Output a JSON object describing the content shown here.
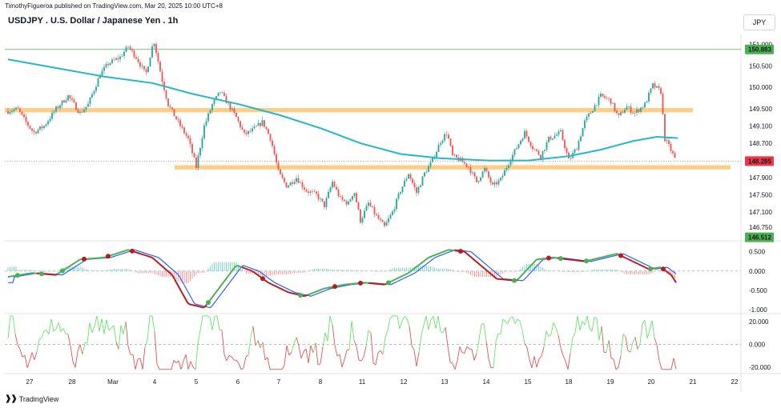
{
  "header": {
    "published": "TimothyFigueroa published on TradingView.com, Mar 20, 2025 10:00 UTC+8"
  },
  "title": "USDJPY . U.S. Dollar / Japanese Yen . 1h",
  "currency": "JPY",
  "brand": "TradingView",
  "colors": {
    "bull": "#26a69a",
    "bear": "#ef5350",
    "ema": "#21b8c8",
    "support_zone": "#fbc572",
    "wt_green": "#4caf50",
    "wt_red": "#b71c1c",
    "wt_blue": "#2962ff",
    "rsi_green": "#66e36a",
    "rsi_red": "#e55353",
    "green_level": "#4caf50",
    "price_tag": "#f23645"
  },
  "chart_data": {
    "type": "candlestick",
    "symbol": "USDJPY",
    "interval": "1h",
    "price_axis": {
      "ticks": [
        "151.000",
        "150.500",
        "150.000",
        "149.500",
        "149.100",
        "148.700",
        "147.900",
        "147.500",
        "147.100",
        "146.750"
      ],
      "range": [
        146.45,
        151.25
      ]
    },
    "price_labels": {
      "current": "148.285",
      "upper_green": "150.883",
      "lower_green": "146.512"
    },
    "zones": [
      {
        "name": "resistance",
        "low": 149.42,
        "high": 149.52
      },
      {
        "name": "support",
        "low": 148.09,
        "high": 148.19
      }
    ],
    "dates": [
      "27",
      "28",
      "Mar",
      "4",
      "5",
      "6",
      "7",
      "8",
      "11",
      "12",
      "13",
      "14",
      "15",
      "18",
      "19",
      "20",
      "21",
      "22"
    ],
    "oscillator_axis": {
      "ticks": [
        "0.500",
        "0.000",
        "-0.500",
        "-1.000"
      ],
      "range": [
        -1.1,
        0.7
      ]
    },
    "rsi_axis": {
      "ticks": [
        "20.000",
        "0.000",
        "-20.000"
      ],
      "range": [
        -25,
        27
      ]
    }
  }
}
